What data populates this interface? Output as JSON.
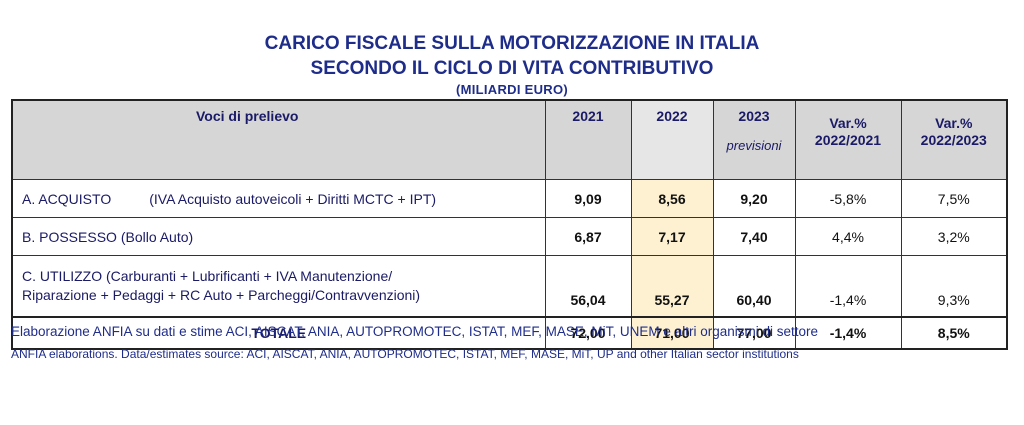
{
  "title": {
    "line1": "CARICO FISCALE SULLA MOTORIZZAZIONE IN ITALIA",
    "line2": "SECONDO IL CICLO DI VITA CONTRIBUTIVO",
    "unit": "(MILIARDI  EURO)"
  },
  "table": {
    "headers": {
      "voci": "Voci di prelievo",
      "y2021": "2021",
      "y2022": "2022",
      "y2023": "2023",
      "y2023_note": "previsioni",
      "var1_line1": "Var.%",
      "var1_line2": "2022/2021",
      "var2_line1": "Var.%",
      "var2_line2": "2022/2023"
    },
    "rows": [
      {
        "label_main": "A. ACQUISTO",
        "label_detail": "(IVA Acquisto autoveicoli + Diritti MCTC + IPT)",
        "v2021": "9,09",
        "v2022": "8,56",
        "v2023": "9,20",
        "var1": "-5,8%",
        "var2": "7,5%"
      },
      {
        "label_main": "B. POSSESSO (Bollo Auto)",
        "v2021": "6,87",
        "v2022": "7,17",
        "v2023": "7,40",
        "var1": "4,4%",
        "var2": "3,2%"
      },
      {
        "label_line1": "C. UTILIZZO (Carburanti + Lubrificanti + IVA Manutenzione/",
        "label_line2": "Riparazione + Pedaggi + RC Auto + Parcheggi/Contravvenzioni)",
        "v2021": "56,04",
        "v2022": "55,27",
        "v2023": "60,40",
        "var1": "-1,4%",
        "var2": "9,3%"
      }
    ],
    "total": {
      "label": "TOTALE",
      "v2021": "72,00",
      "v2022": "71,00",
      "v2023": "77,00",
      "var1": "-1,4%",
      "var2": "8,5%"
    }
  },
  "notes": {
    "it": "Elaborazione ANFIA su dati e stime ACI, AISCAT, ANIA, AUTOPROMOTEC, ISTAT, MEF, MASE, MiT, UNEM e altri organismi di settore",
    "en": "ANFIA elaborations. Data/estimates source: ACI, AISCAT, ANIA, AUTOPROMOTEC, ISTAT, MEF, MASE, MiT, UP and other Italian sector institutions"
  },
  "colors": {
    "title": "#1f2d8a",
    "header_bg": "#d6d6d6",
    "highlight_2022": "#fdf1d2"
  }
}
